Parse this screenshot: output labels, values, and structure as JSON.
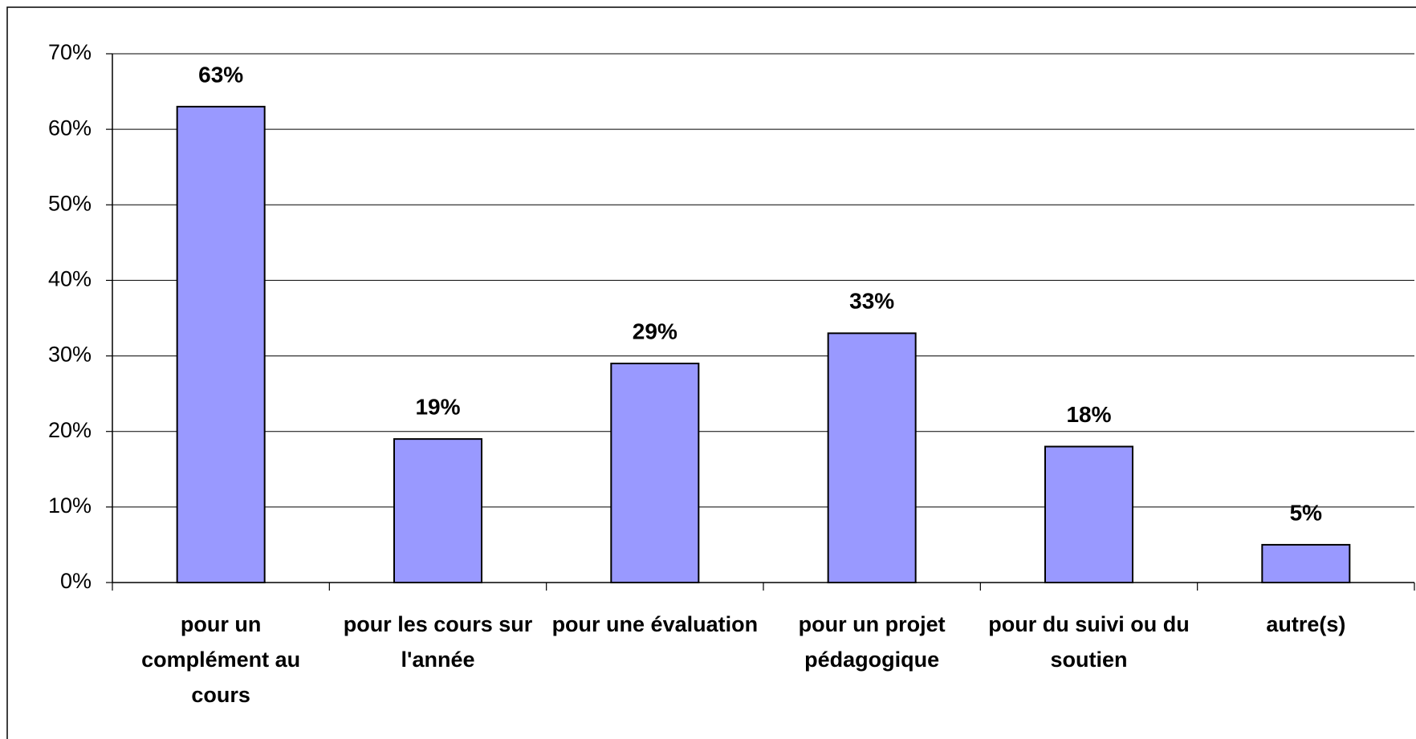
{
  "chart_data": {
    "type": "bar",
    "categories": [
      "pour un complément au cours",
      "pour les cours sur l'année",
      "pour une évaluation",
      "pour un projet pédagogique",
      "pour du suivi ou du soutien",
      "autre(s)"
    ],
    "values": [
      63,
      19,
      29,
      33,
      18,
      5
    ],
    "value_labels": [
      "63%",
      "19%",
      "29%",
      "33%",
      "18%",
      "5%"
    ],
    "color": "#9999ff",
    "ylim": [
      0,
      70
    ],
    "yticks": [
      {
        "value": 0,
        "label": "0%"
      },
      {
        "value": 10,
        "label": "10%"
      },
      {
        "value": 20,
        "label": "20%"
      },
      {
        "value": 30,
        "label": "30%"
      },
      {
        "value": 40,
        "label": "40%"
      },
      {
        "value": 50,
        "label": "50%"
      },
      {
        "value": 60,
        "label": "60%"
      },
      {
        "value": 70,
        "label": "70%"
      }
    ],
    "grid": true
  }
}
